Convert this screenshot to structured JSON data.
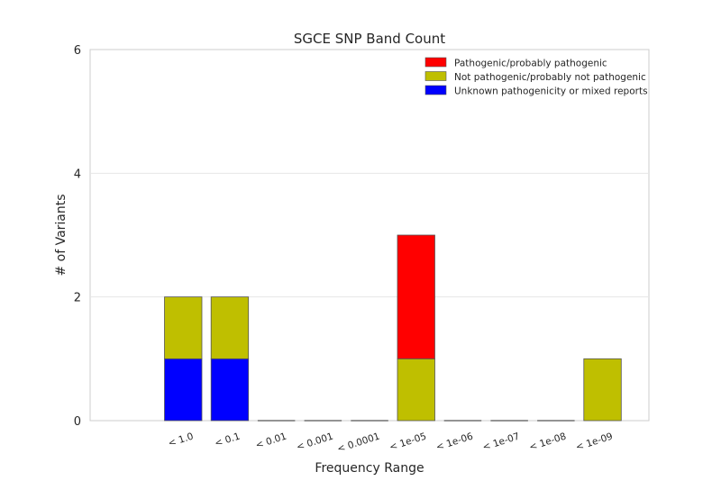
{
  "chart_data": {
    "type": "bar",
    "stacked": true,
    "title": "SGCE SNP Band Count",
    "xlabel": "Frequency Range",
    "ylabel": "# of Variants",
    "categories": [
      "< 1.0",
      "< 0.1",
      "< 0.01",
      "< 0.001",
      "< 0.0001",
      "< 1e-05",
      "< 1e-06",
      "< 1e-07",
      "< 1e-08",
      "< 1e-09"
    ],
    "series": [
      {
        "name": "Unknown pathogenicity or mixed reports",
        "color": "#0000ff",
        "values": [
          1,
          1,
          0,
          0,
          0,
          0,
          0,
          0,
          0,
          0
        ]
      },
      {
        "name": "Not pathogenic/probably not pathogenic",
        "color": "#bfbf00",
        "values": [
          1,
          1,
          0,
          0,
          0,
          1,
          0,
          0,
          0,
          1
        ]
      },
      {
        "name": "Pathogenic/probably pathogenic",
        "color": "#ff0000",
        "values": [
          0,
          0,
          0,
          0,
          0,
          2,
          0,
          0,
          0,
          0
        ]
      }
    ],
    "legend_order": [
      2,
      1,
      0
    ],
    "legend_position": "top-right",
    "ylim": [
      0,
      6
    ],
    "yticks": [
      0,
      2,
      4,
      6
    ],
    "grid": true
  }
}
